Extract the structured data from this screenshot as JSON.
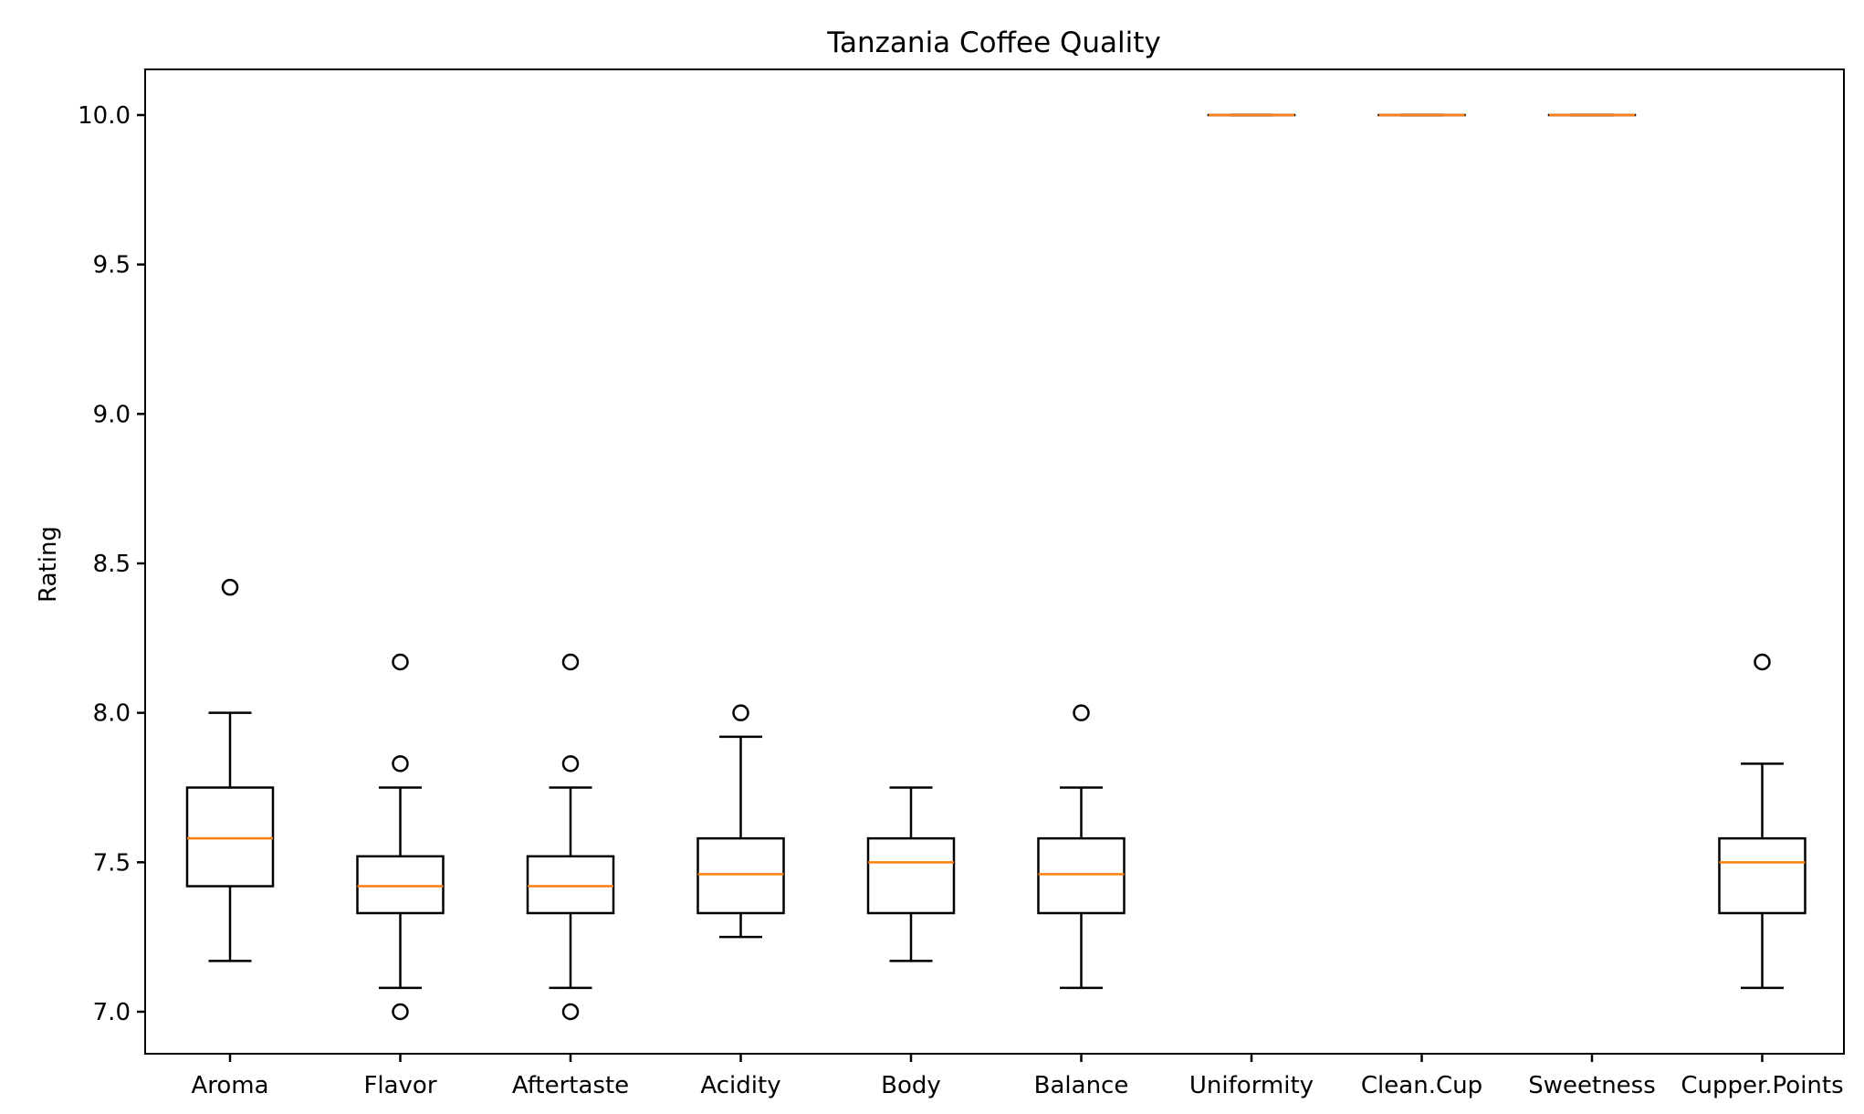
{
  "chart_data": {
    "type": "box",
    "title": "Tanzania Coffee Quality",
    "xlabel": "",
    "ylabel": "Rating",
    "ylim": [
      6.855,
      10.15
    ],
    "yticks": [
      "7.0",
      "7.5",
      "8.0",
      "8.5",
      "9.0",
      "9.5",
      "10.0"
    ],
    "grid": false,
    "categories": [
      "Aroma",
      "Flavor",
      "Aftertaste",
      "Acidity",
      "Body",
      "Balance",
      "Uniformity",
      "Clean.Cup",
      "Sweetness",
      "Cupper.Points"
    ],
    "boxes": [
      {
        "category": "Aroma",
        "whisker_low": 7.17,
        "q1": 7.42,
        "median": 7.58,
        "q3": 7.75,
        "whisker_high": 8.0,
        "outliers": [
          8.42
        ]
      },
      {
        "category": "Flavor",
        "whisker_low": 7.08,
        "q1": 7.33,
        "median": 7.42,
        "q3": 7.52,
        "whisker_high": 7.75,
        "outliers": [
          8.17,
          7.83,
          7.0
        ]
      },
      {
        "category": "Aftertaste",
        "whisker_low": 7.08,
        "q1": 7.33,
        "median": 7.42,
        "q3": 7.52,
        "whisker_high": 7.75,
        "outliers": [
          8.17,
          7.83,
          7.0
        ]
      },
      {
        "category": "Acidity",
        "whisker_low": 7.25,
        "q1": 7.33,
        "median": 7.46,
        "q3": 7.58,
        "whisker_high": 7.92,
        "outliers": [
          8.0
        ]
      },
      {
        "category": "Body",
        "whisker_low": 7.17,
        "q1": 7.33,
        "median": 7.5,
        "q3": 7.58,
        "whisker_high": 7.75,
        "outliers": []
      },
      {
        "category": "Balance",
        "whisker_low": 7.08,
        "q1": 7.33,
        "median": 7.46,
        "q3": 7.58,
        "whisker_high": 7.75,
        "outliers": [
          8.0
        ]
      },
      {
        "category": "Uniformity",
        "whisker_low": 10.0,
        "q1": 10.0,
        "median": 10.0,
        "q3": 10.0,
        "whisker_high": 10.0,
        "outliers": []
      },
      {
        "category": "Clean.Cup",
        "whisker_low": 10.0,
        "q1": 10.0,
        "median": 10.0,
        "q3": 10.0,
        "whisker_high": 10.0,
        "outliers": []
      },
      {
        "category": "Sweetness",
        "whisker_low": 10.0,
        "q1": 10.0,
        "median": 10.0,
        "q3": 10.0,
        "whisker_high": 10.0,
        "outliers": []
      },
      {
        "category": "Cupper.Points",
        "whisker_low": 7.08,
        "q1": 7.33,
        "median": 7.5,
        "q3": 7.58,
        "whisker_high": 7.83,
        "outliers": [
          8.17
        ]
      }
    ],
    "colors": {
      "box": "#000000",
      "median": "#ff7f0e",
      "background": "#ffffff"
    }
  }
}
